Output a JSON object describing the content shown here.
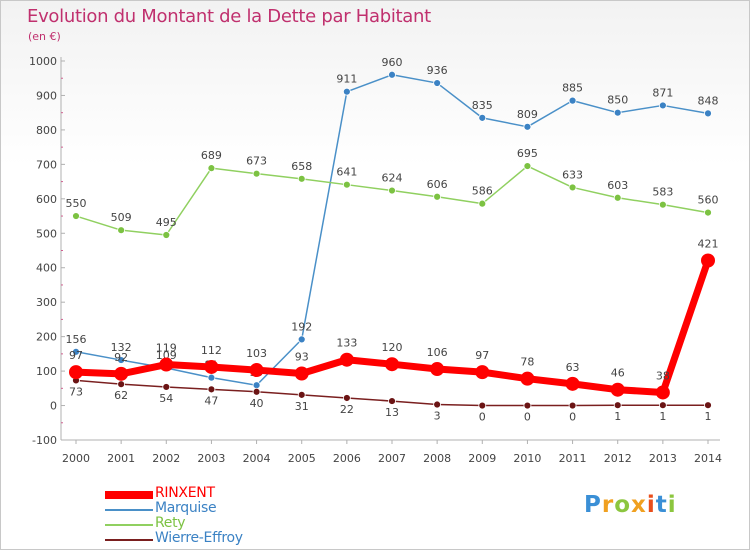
{
  "header": {
    "title": "Evolution du Montant de la Dette par Habitant",
    "subtitle": "(en €)"
  },
  "logo": {
    "text": "Proxiti",
    "colors": [
      "#3a8fd6",
      "#f0a020",
      "#8cc63f",
      "#f0a020",
      "#e94e1b",
      "#3a8fd6",
      "#8cc63f"
    ]
  },
  "chart_data": {
    "type": "line",
    "title": "Evolution du Montant de la Dette par Habitant",
    "subtitle": "(en €)",
    "xlabel": "",
    "ylabel": "",
    "x": [
      "2000",
      "2001",
      "2002",
      "2003",
      "2004",
      "2005",
      "2006",
      "2007",
      "2008",
      "2009",
      "2010",
      "2011",
      "2012",
      "2013",
      "2014"
    ],
    "y_ticks": [
      "-100",
      "0",
      "100",
      "200",
      "300",
      "400",
      "500",
      "600",
      "700",
      "800",
      "900",
      "1000"
    ],
    "ylim": [
      -100,
      1000
    ],
    "grid": false,
    "legend_position": "bottom-left",
    "series": [
      {
        "name": "Marquise",
        "color": "#4a90c8",
        "point_color": "#3b82c4",
        "values": [
          156,
          132,
          109,
          81,
          59,
          192,
          911,
          960,
          936,
          835,
          809,
          885,
          850,
          871,
          848
        ],
        "labels": [
          "156",
          "132",
          "109",
          "81",
          "59",
          "192",
          "911",
          "960",
          "936",
          "835",
          "809",
          "885",
          "850",
          "871",
          "848"
        ]
      },
      {
        "name": "Rety",
        "color": "#90d060",
        "point_color": "#7cc242",
        "values": [
          550,
          509,
          495,
          689,
          673,
          658,
          641,
          624,
          606,
          586,
          695,
          633,
          603,
          583,
          560
        ],
        "labels": [
          "550",
          "509",
          "495",
          "689",
          "673",
          "658",
          "641",
          "624",
          "606",
          "586",
          "695",
          "633",
          "603",
          "583",
          "560"
        ]
      },
      {
        "name": "Wierre-Effroy",
        "color": "#7a1f1f",
        "point_color": "#6b1414",
        "values": [
          73,
          62,
          54,
          47,
          40,
          31,
          22,
          13,
          3,
          0,
          0,
          0,
          1,
          1,
          1
        ],
        "labels": [
          "73",
          "62",
          "54",
          "47",
          "40",
          "31",
          "22",
          "13",
          "3",
          "0",
          "0",
          "0",
          "1",
          "1",
          "1"
        ]
      },
      {
        "name": "RINXENT",
        "color": "#ff0000",
        "point_color": "#ff0000",
        "values": [
          97,
          92,
          119,
          112,
          103,
          93,
          133,
          120,
          106,
          97,
          78,
          63,
          46,
          38,
          421
        ],
        "labels": [
          "97",
          "92",
          "119",
          "112",
          "103",
          "93",
          "133",
          "120",
          "106",
          "97",
          "78",
          "63",
          "46",
          "38",
          "421"
        ]
      }
    ]
  }
}
